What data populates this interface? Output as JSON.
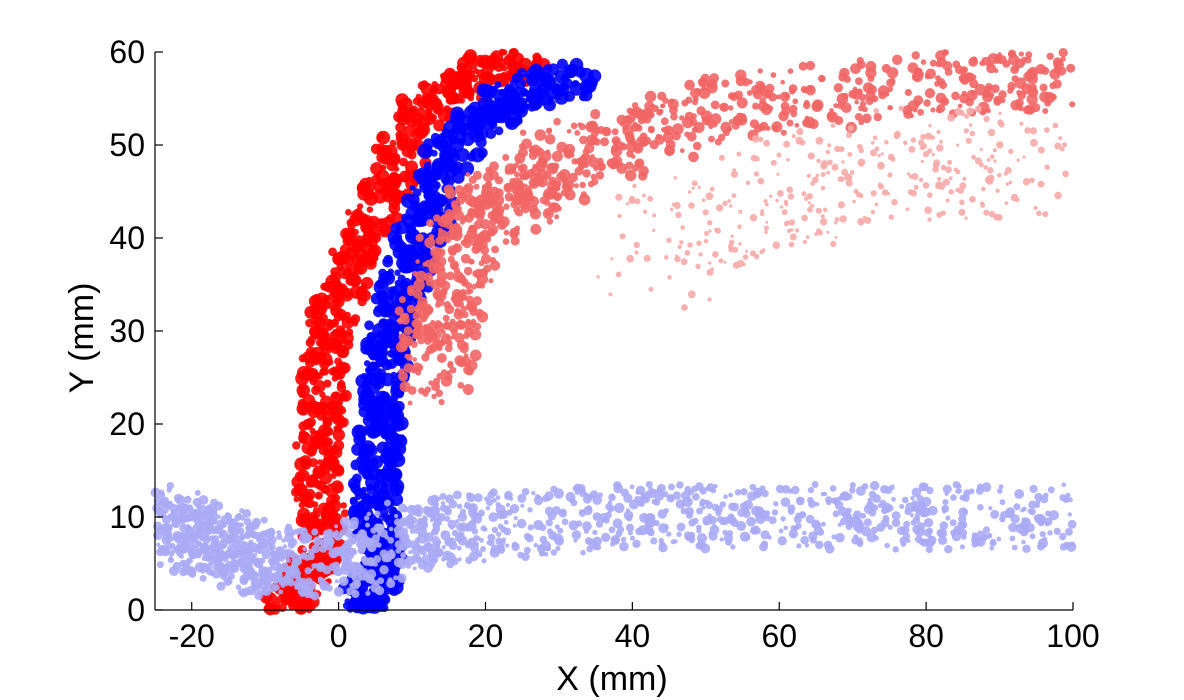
{
  "chart_data": {
    "type": "scatter",
    "title": "",
    "xlabel": "X (mm)",
    "ylabel": "Y (mm)",
    "xlim": [
      -25,
      100
    ],
    "ylim": [
      0,
      60
    ],
    "x_ticks": [
      -20,
      0,
      20,
      40,
      60,
      80,
      100
    ],
    "y_ticks": [
      0,
      10,
      20,
      30,
      40,
      50,
      60
    ],
    "grid": false,
    "legend": "none",
    "colors": {
      "strong_red": "#ff0000",
      "mid_red": "#f26565",
      "light_red": "#f7aaaa",
      "strong_blue": "#0000ff",
      "mid_blue": "#6868ee",
      "light_blue": "#aaaaf5"
    },
    "series": [
      {
        "color": "strong_red",
        "description_points": [
          [
            -8,
            0
          ],
          [
            -5,
            3
          ],
          [
            -3,
            5
          ],
          [
            -2,
            10
          ],
          [
            -3,
            15
          ],
          [
            -2,
            20
          ],
          [
            -2,
            25
          ],
          [
            -1,
            30
          ],
          [
            1,
            35
          ],
          [
            3,
            40
          ],
          [
            6,
            45
          ],
          [
            9,
            50
          ],
          [
            13,
            55
          ],
          [
            20,
            58
          ],
          [
            27,
            59
          ]
        ]
      },
      {
        "color": "strong_blue",
        "description_points": [
          [
            3,
            0
          ],
          [
            4,
            2
          ],
          [
            6,
            5
          ],
          [
            5,
            10
          ],
          [
            5,
            15
          ],
          [
            6,
            20
          ],
          [
            6,
            25
          ],
          [
            7,
            30
          ],
          [
            9,
            35
          ],
          [
            11,
            40
          ],
          [
            13,
            45
          ],
          [
            16,
            50
          ],
          [
            21,
            54
          ],
          [
            26,
            56
          ],
          [
            33,
            57
          ]
        ]
      },
      {
        "color": "mid_red",
        "description_points": [
          [
            14,
            25
          ],
          [
            13,
            30
          ],
          [
            15,
            35
          ],
          [
            17,
            40
          ],
          [
            20,
            43
          ],
          [
            25,
            45
          ],
          [
            30,
            48
          ],
          [
            38,
            50
          ],
          [
            48,
            53
          ],
          [
            60,
            55
          ],
          [
            75,
            56
          ],
          [
            90,
            57
          ],
          [
            100,
            57
          ]
        ]
      },
      {
        "color": "light_blue",
        "description_points": [
          [
            -25,
            10
          ],
          [
            -20,
            8
          ],
          [
            -15,
            7
          ],
          [
            -10,
            5
          ],
          [
            0,
            5
          ],
          [
            10,
            8
          ],
          [
            20,
            9
          ],
          [
            40,
            10
          ],
          [
            60,
            10
          ],
          [
            80,
            10
          ],
          [
            100,
            10
          ]
        ]
      },
      {
        "color": "light_red",
        "description_points": [
          [
            40,
            38
          ],
          [
            60,
            45
          ],
          [
            80,
            48
          ],
          [
            100,
            48
          ]
        ]
      }
    ]
  }
}
